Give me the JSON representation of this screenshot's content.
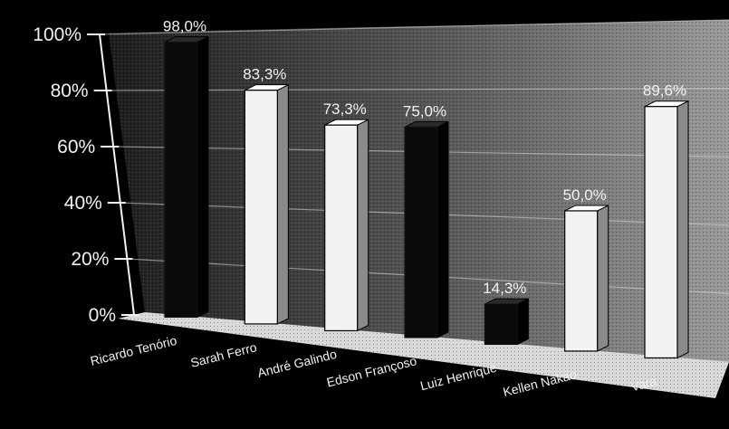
{
  "chart_data": {
    "type": "bar",
    "categories": [
      "Ricardo Tenório",
      "Sarah Ferro",
      "André Galindo",
      "Edson Françoso",
      "Luiz Henrique",
      "Kellen Nakao",
      "Vara"
    ],
    "values": [
      98.0,
      83.3,
      73.3,
      75.0,
      14.3,
      50.0,
      89.6
    ],
    "value_labels": [
      "98,0%",
      "83,3%",
      "73,3%",
      "75,0%",
      "14,3%",
      "50,0%",
      "89,6%"
    ],
    "y_ticks": [
      "0%",
      "20%",
      "40%",
      "60%",
      "80%",
      "100%"
    ],
    "ylim": [
      0,
      100
    ],
    "grid": true,
    "bar_colors": [
      "#0a0a0a",
      "#f2f2f2",
      "#f2f2f2",
      "#0a0a0a",
      "#0a0a0a",
      "#f2f2f2",
      "#f2f2f2"
    ],
    "background": "#000000",
    "text_color": "#f2f2f2"
  }
}
